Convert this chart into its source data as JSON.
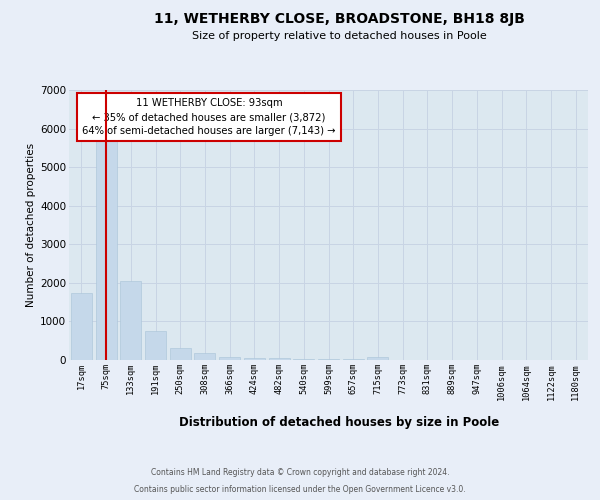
{
  "title": "11, WETHERBY CLOSE, BROADSTONE, BH18 8JB",
  "subtitle": "Size of property relative to detached houses in Poole",
  "xlabel": "Distribution of detached houses by size in Poole",
  "ylabel": "Number of detached properties",
  "footnote1": "Contains HM Land Registry data © Crown copyright and database right 2024.",
  "footnote2": "Contains public sector information licensed under the Open Government Licence v3.0.",
  "bar_labels": [
    "17sqm",
    "75sqm",
    "133sqm",
    "191sqm",
    "250sqm",
    "308sqm",
    "366sqm",
    "424sqm",
    "482sqm",
    "540sqm",
    "599sqm",
    "657sqm",
    "715sqm",
    "773sqm",
    "831sqm",
    "889sqm",
    "947sqm",
    "1006sqm",
    "1064sqm",
    "1122sqm",
    "1180sqm"
  ],
  "bar_values": [
    1750,
    5780,
    2060,
    750,
    310,
    175,
    90,
    60,
    40,
    30,
    20,
    15,
    75,
    0,
    0,
    0,
    0,
    0,
    0,
    0,
    0
  ],
  "bar_color": "#c5d8ea",
  "bar_edge_color": "#a8c4d8",
  "vline_x": 1.0,
  "vline_color": "#cc0000",
  "annotation_label": "11 WETHERBY CLOSE: 93sqm",
  "annotation_line1": "← 35% of detached houses are smaller (3,872)",
  "annotation_line2": "64% of semi-detached houses are larger (7,143) →",
  "annotation_box_color": "#ffffff",
  "annotation_box_edge": "#cc0000",
  "ylim_max": 7000,
  "yticks": [
    0,
    1000,
    2000,
    3000,
    4000,
    5000,
    6000,
    7000
  ],
  "grid_color": "#c8d4e4",
  "plot_bg": "#dce8f0",
  "fig_bg": "#e8eef8"
}
